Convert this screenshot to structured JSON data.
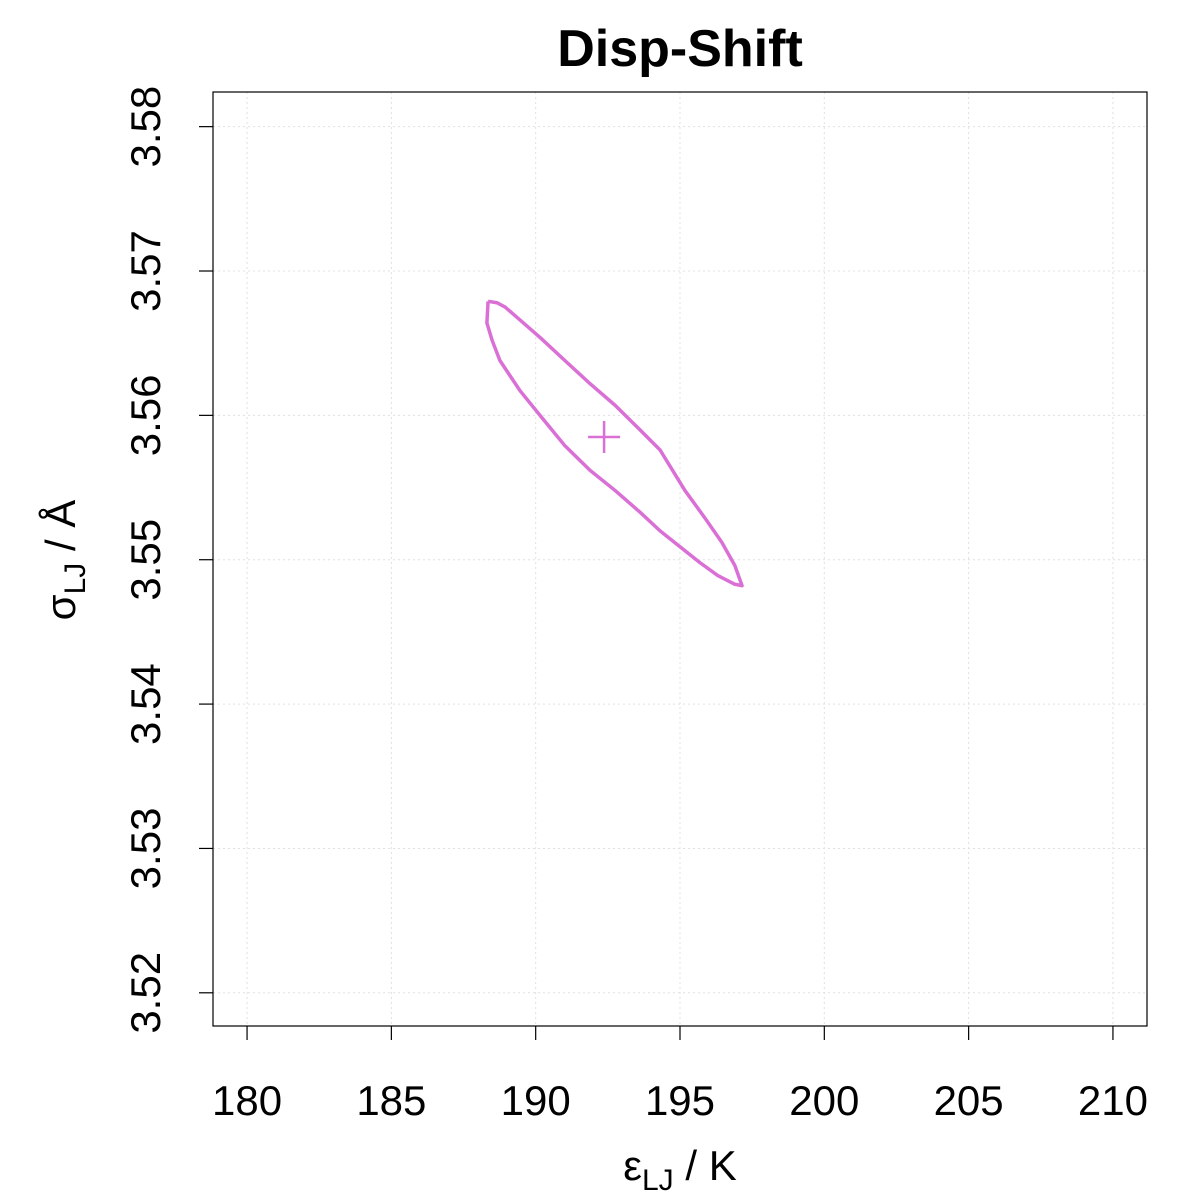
{
  "chart_data": {
    "type": "contour",
    "title": "Disp-Shift",
    "x_label": {
      "symbol": "ε",
      "subscript": "LJ",
      "unit": " / K"
    },
    "y_label": {
      "symbol": "σ",
      "subscript": "LJ",
      "unit": " / Å"
    },
    "xlim": [
      178.82,
      211.18
    ],
    "xticks": [
      180,
      185,
      190,
      195,
      200,
      205,
      210
    ],
    "ylim": [
      3.5177,
      3.5824
    ],
    "yticks": [
      3.52,
      3.53,
      3.54,
      3.55,
      3.56,
      3.57,
      3.58
    ],
    "grid": true,
    "color": "#da70d6",
    "contour": {
      "x": [
        188.35,
        188.66,
        188.94,
        189.46,
        190.15,
        191.01,
        191.88,
        192.75,
        193.61,
        194.31,
        195.17,
        195.86,
        196.45,
        196.9,
        197.15,
        196.9,
        196.31,
        195.69,
        195.0,
        194.31,
        193.61,
        192.75,
        191.88,
        191.01,
        190.15,
        189.46,
        188.76,
        188.49,
        188.31,
        188.35
      ],
      "y": [
        3.5679,
        3.5678,
        3.5675,
        3.5666,
        3.5654,
        3.5638,
        3.5622,
        3.5607,
        3.559,
        3.5576,
        3.5548,
        3.5529,
        3.5512,
        3.5496,
        3.5482,
        3.5483,
        3.5489,
        3.5498,
        3.5509,
        3.552,
        3.5533,
        3.5548,
        3.5562,
        3.5579,
        3.56,
        3.5617,
        3.5638,
        3.5652,
        3.5664,
        3.5679
      ]
    },
    "center": {
      "x": 192.37,
      "y": 3.5585
    }
  }
}
